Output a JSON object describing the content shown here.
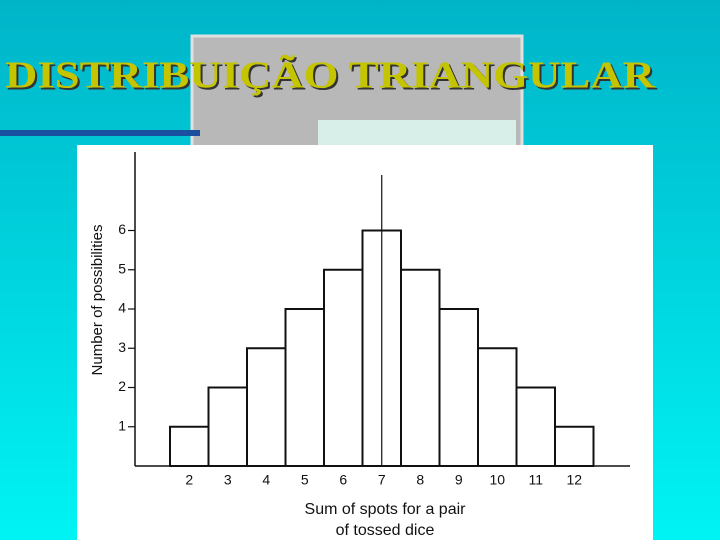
{
  "chart_data": {
    "type": "bar",
    "title": "DISTRIBUIÇÃO TRIANGULAR",
    "y_label": "Number of possibilities",
    "x_label": [
      "Sum of spots for a pair",
      "of tossed dice"
    ],
    "categories": [
      "2",
      "3",
      "4",
      "5",
      "6",
      "7",
      "8",
      "9",
      "10",
      "11",
      "12"
    ],
    "values": [
      1,
      2,
      3,
      4,
      5,
      6,
      5,
      4,
      3,
      2,
      1
    ],
    "color": "#ffffff",
    "ylim": [
      0,
      8
    ],
    "yticks": [
      1,
      2,
      3,
      4,
      5,
      6
    ]
  }
}
